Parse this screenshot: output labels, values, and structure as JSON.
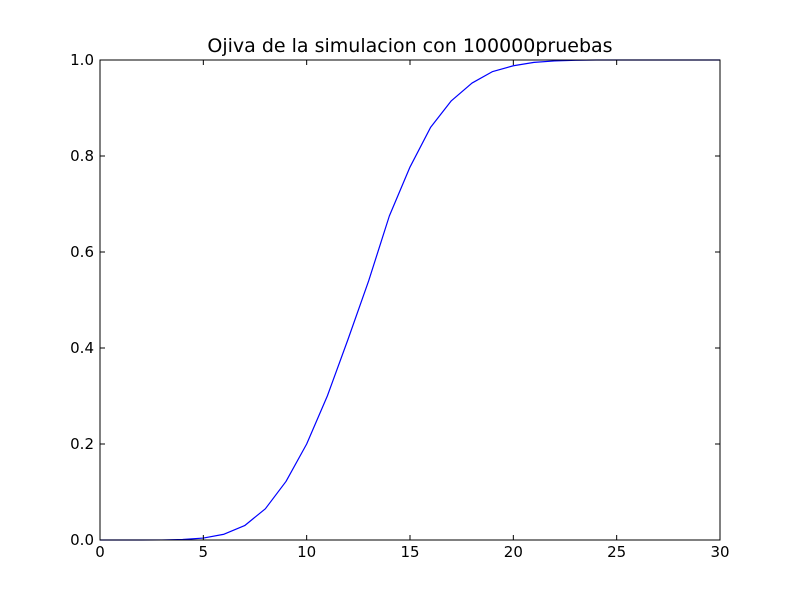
{
  "chart_data": {
    "type": "line",
    "title": "Ojiva de la simulacion con 100000pruebas",
    "xlabel": "",
    "ylabel": "",
    "xlim": [
      0,
      30
    ],
    "ylim": [
      0.0,
      1.0
    ],
    "grid": false,
    "x_ticks": [
      0,
      5,
      10,
      15,
      20,
      25,
      30
    ],
    "x_tick_labels": [
      "0",
      "5",
      "10",
      "15",
      "20",
      "25",
      "30"
    ],
    "y_ticks": [
      0.0,
      0.2,
      0.4,
      0.6,
      0.8,
      1.0
    ],
    "y_tick_labels": [
      "0.0",
      "0.2",
      "0.4",
      "0.6",
      "0.8",
      "1.0"
    ],
    "series": [
      {
        "color": "#0000ff",
        "x": [
          0,
          1,
          2,
          3,
          4,
          5,
          6,
          7,
          8,
          9,
          10,
          11,
          12,
          13,
          14,
          15,
          16,
          17,
          18,
          19,
          20,
          21,
          22,
          23,
          24,
          25,
          26,
          27,
          28,
          29,
          30
        ],
        "y": [
          0.0,
          0.0,
          0.0,
          0.0001,
          0.001,
          0.004,
          0.012,
          0.03,
          0.065,
          0.122,
          0.2,
          0.3,
          0.418,
          0.54,
          0.675,
          0.777,
          0.86,
          0.915,
          0.952,
          0.976,
          0.988,
          0.995,
          0.998,
          0.9995,
          1.0,
          1.0,
          1.0,
          1.0,
          1.0,
          1.0,
          1.0
        ]
      }
    ]
  }
}
